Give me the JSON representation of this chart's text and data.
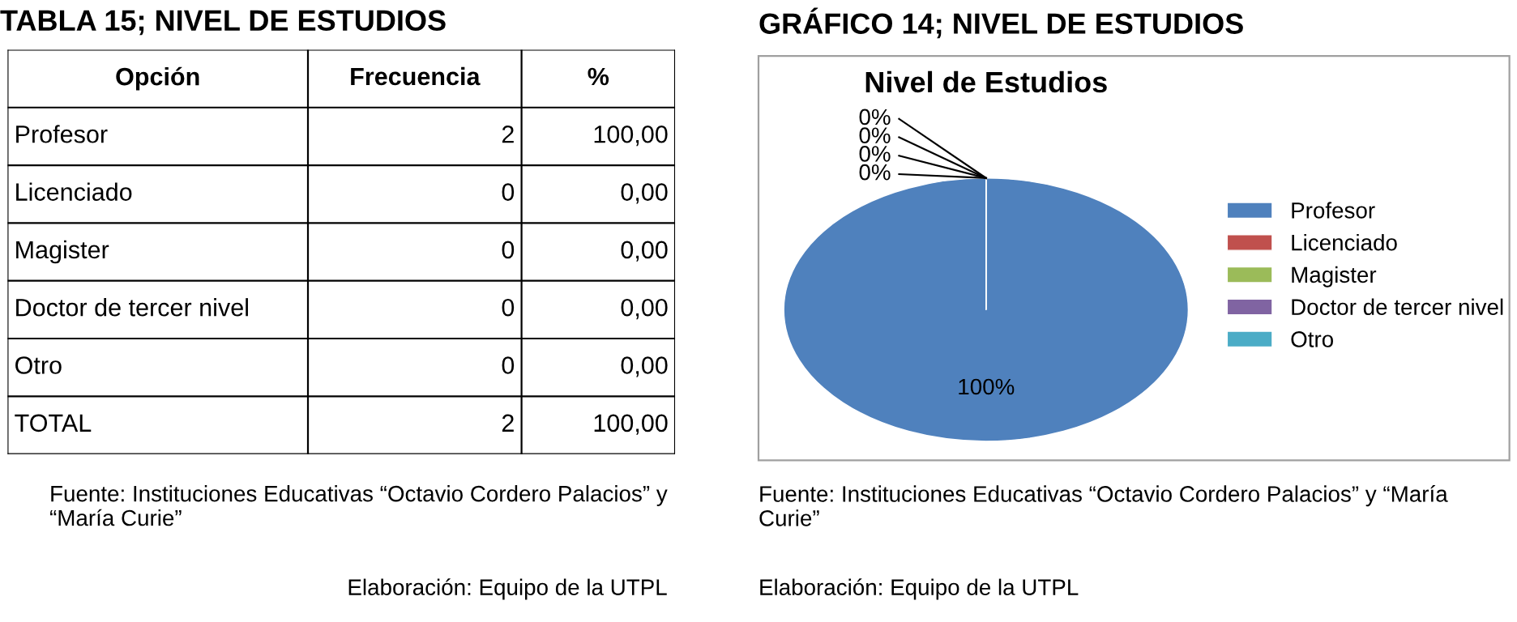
{
  "chart_data": [
    {
      "type": "other",
      "title": "TABLA 15; NIVEL DE ESTUDIOS",
      "xlabel": "Opción",
      "categories": [
        "Profesor",
        "Licenciado",
        "Magister",
        "Doctor de tercer nivel",
        "Otro",
        "TOTAL"
      ],
      "series": [
        {
          "name": "Frecuencia",
          "values": [
            2,
            0,
            0,
            0,
            0,
            2
          ]
        },
        {
          "name": "%",
          "values": [
            100,
            0,
            0,
            0,
            0,
            100
          ],
          "value_labels": [
            "100,00",
            "0,00",
            "0,00",
            "0,00",
            "0,00",
            "100,00"
          ]
        }
      ],
      "data_labels": true,
      "annotations": [
        "Fuente: Instituciones Educativas “Octavio Cordero Palacios” y “María Curie”",
        "Elaboración: Equipo de la UTPL"
      ]
    },
    {
      "type": "pie",
      "title": "GRÁFICO 14; NIVEL DE ESTUDIOS",
      "subtitle": "Nivel de Estudios",
      "categories": [
        "Profesor",
        "Licenciado",
        "Magister",
        "Doctor de tercer nivel",
        "Otro"
      ],
      "values": [
        100,
        0,
        0,
        0,
        0
      ],
      "value_labels": [
        "100%",
        "0%",
        "0%",
        "0%",
        "0%"
      ],
      "colors": [
        "#4f81bd",
        "#c0504d",
        "#9bbb59",
        "#8064a2",
        "#4bacc6"
      ],
      "legend": "right",
      "annotations": [
        "Fuente: Instituciones Educativas “Octavio Cordero Palacios” y “María Curie”",
        "Elaboración: Equipo de la UTPL"
      ]
    }
  ]
}
